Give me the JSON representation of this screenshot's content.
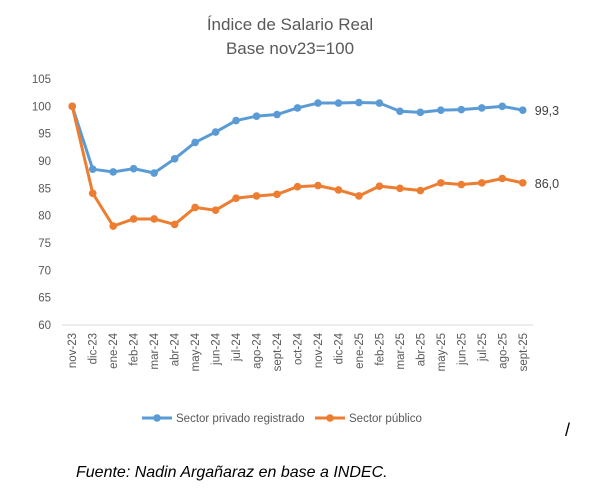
{
  "chart_data": {
    "type": "line",
    "title": "Índice de Salario Real",
    "subtitle": "Base nov23=100",
    "ylim": [
      60,
      105
    ],
    "yticks": [
      60,
      65,
      70,
      75,
      80,
      85,
      90,
      95,
      100,
      105
    ],
    "categories": [
      "nov-23",
      "dic-23",
      "ene-24",
      "feb-24",
      "mar-24",
      "abr-24",
      "may-24",
      "jun-24",
      "jul-24",
      "ago-24",
      "sept-24",
      "oct-24",
      "nov-24",
      "dic-24",
      "ene-25",
      "feb-25",
      "mar-25",
      "abr-25",
      "may-25",
      "jun-25",
      "jul-25",
      "ago-25",
      "sept-25"
    ],
    "series": [
      {
        "name": "Sector privado registrado",
        "color": "#5B9BD5",
        "values": [
          100,
          88.5,
          88.0,
          88.6,
          87.8,
          90.4,
          93.4,
          95.3,
          97.4,
          98.2,
          98.5,
          99.7,
          100.6,
          100.6,
          100.7,
          100.6,
          99.1,
          98.9,
          99.3,
          99.4,
          99.7,
          100.0,
          99.3
        ],
        "end_label": "99,3"
      },
      {
        "name": "Sector público",
        "color": "#ED7D31",
        "values": [
          100,
          84.1,
          78.1,
          79.4,
          79.4,
          78.4,
          81.5,
          81.0,
          83.2,
          83.6,
          83.9,
          85.3,
          85.5,
          84.7,
          83.6,
          85.4,
          85.0,
          84.6,
          86.0,
          85.7,
          86.0,
          86.8,
          86.0
        ],
        "end_label": "86,0"
      }
    ],
    "legend_position": "bottom",
    "grid": false
  },
  "source": "Fuente: Nadin Argañaraz en base a INDEC.",
  "mark": "/"
}
